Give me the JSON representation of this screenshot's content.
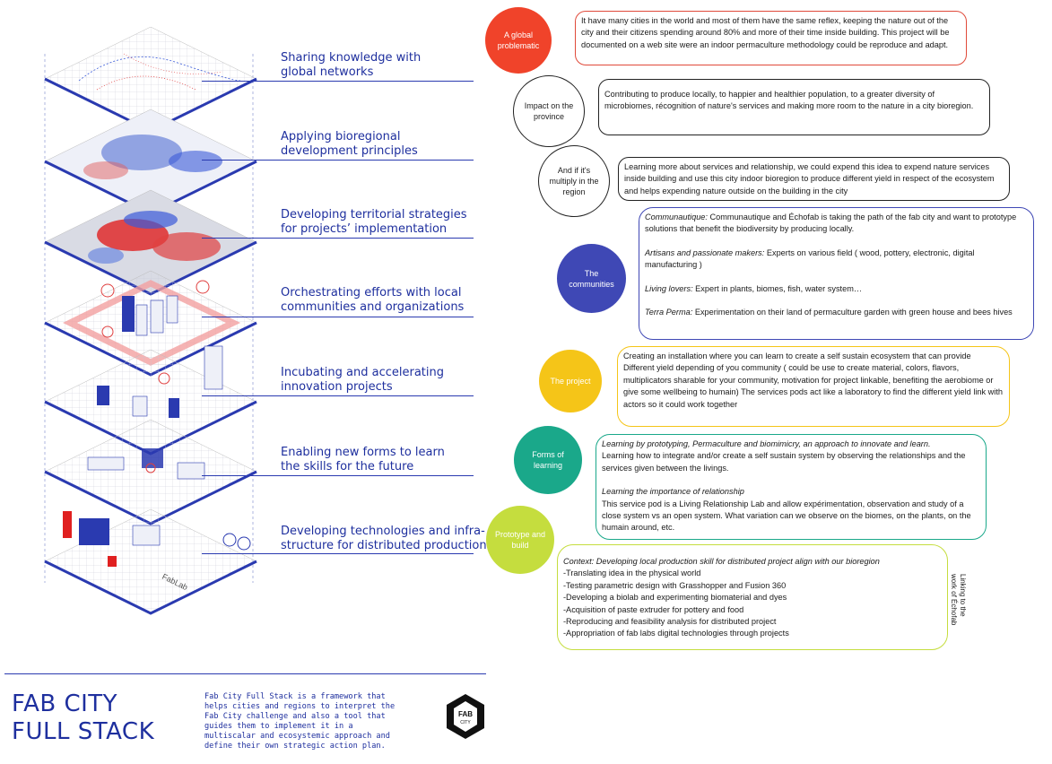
{
  "layers": [
    {
      "label": "Sharing knowledge with\nglobal networks"
    },
    {
      "label": "Applying bioregional\ndevelopment principles"
    },
    {
      "label": "Developing territorial strategies\nfor projects’ implementation"
    },
    {
      "label": "Orchestrating efforts with local\ncommunities and organizations"
    },
    {
      "label": "Incubating and accelerating\ninnovation projects"
    },
    {
      "label": "Enabling new forms to learn\nthe skills for the future"
    },
    {
      "label": "Developing technologies and infra-\nstructure for distributed production"
    }
  ],
  "stack_texts": {
    "fablab": "FabLab"
  },
  "footer": {
    "title": "FAB CITY\nFULL STACK",
    "description": "Fab City Full Stack is a framework that helps cities and regions to interpret the Fab City challenge and also a tool that guides them to implement it in a multiscalar and ecosystemic approach and define their own strategic action plan.",
    "logo_text_1": "FAB",
    "logo_text_2": "CITY"
  },
  "colors": {
    "blue": "#1e2f9e",
    "red": "#f0432a",
    "indigo": "#3f48b5",
    "yellow": "#f5c518",
    "teal": "#1aa88a",
    "lime": "#c5dd3e"
  },
  "items": {
    "global": {
      "circle": "A global problematic",
      "text": "It have many cities in the world and most of them have the same reflex, keeping the nature out of the city and their citizens spending around 80% and more of their time inside building. This project will be documented on a web site were an indoor permaculture methodology could be reproduce and adapt."
    },
    "impact": {
      "circle": "Impact on the province",
      "text": "Contributing to produce locally, to happier and healthier population, to a greater diversity of microbiomes, récognition of nature's services and making more room to the nature in a city bioregion."
    },
    "multiply": {
      "circle": "And if it's multiply in the region",
      "text": "Learning more about services and relationship, we could expend this idea to expend nature services inside building and use this city indoor bioregion to produce different yield in respect of the ecosystem and helps expending nature outside on the building in the city"
    },
    "communities": {
      "circle": "The communities",
      "p1_label": "Communautique:",
      "p1_text": " Communautique and Échofab is taking the path of the fab city and want to prototype solutions that benefit the biodiversity by producing locally.",
      "p2_label": "Artisans and passionate makers:",
      "p2_text": " Experts on various field ( wood, pottery, electronic, digital manufacturing )",
      "p3_label": "Living lovers:",
      "p3_text": " Expert in plants, biomes, fish, water system…",
      "p4_label": "Terra Perma:",
      "p4_text": " Experimentation on their land of permaculture garden with green house and bees hives"
    },
    "project": {
      "circle": "The project",
      "text": "Creating an installation where you can learn to create a self sustain ecosystem that can provide Different yield depending of you community ( could be use to create material, colors, flavors, multiplicators sharable for your community, motivation for project linkable, benefiting the aerobiome or give some wellbeing to humain) The services pods act like a laboratory to find the different yield link with actors so it could work together"
    },
    "learning": {
      "circle": "Forms of learning",
      "h1": "Learning by prototyping, Permaculture and biomimicry, an approach to innovate and learn.",
      "t1": "Learning how to integrate and/or create a self sustain system by observing the relationships and the services given between the livings.",
      "h2": "Learning the importance of relationship",
      "t2": "This service pod is a Living Relationship Lab and allow expérimentation, observation and study of a close system vs an open system. What variation can we observe on the biomes, on the plants, on the humain around, etc."
    },
    "prototype": {
      "circle": "Prototype and build",
      "context": "Context: Developing local production skill for distributed project align with our bioregion",
      "lines": [
        "-Translating idea in the physical world",
        "-Testing parametric design with Grasshopper and Fusion 360",
        "-Developing a biolab and experimenting biomaterial and dyes",
        "-Acquisition of paste extruder for pottery and food",
        "-Reproducing and feasibility analysis for distributed project",
        "-Appropriation of fab labs digital technologies through projects"
      ],
      "side_note": "Linking to the\nwork of Échofab"
    }
  }
}
